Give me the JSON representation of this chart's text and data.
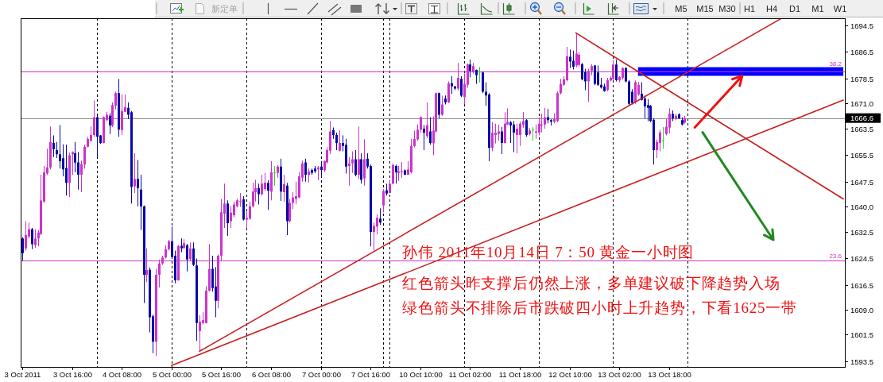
{
  "chart_data": {
    "type": "candlestick",
    "categories": [
      "3 Oct 2011",
      null,
      null,
      null,
      null,
      null,
      null,
      null,
      null,
      null,
      null,
      null,
      null,
      null,
      null,
      null,
      "3 Oct 16:00",
      null,
      null,
      null,
      null,
      null,
      null,
      null,
      null,
      null,
      null,
      null,
      null,
      null,
      null,
      null,
      "4 Oct 08:00",
      null,
      null,
      null,
      null,
      null,
      null,
      null,
      null,
      null,
      null,
      null,
      null,
      null,
      null,
      null,
      "5 Oct 00:00",
      null,
      null,
      null,
      null,
      null,
      null,
      null,
      null,
      null,
      null,
      null,
      null,
      null,
      null,
      null,
      "5 Oct 16:00",
      null,
      null,
      null,
      null,
      null,
      null,
      null,
      null,
      null,
      null,
      null,
      null,
      null,
      null,
      null,
      "6 Oct 08:00",
      null,
      null,
      null,
      null,
      null,
      null,
      null,
      null,
      null,
      null,
      null,
      null,
      null,
      null,
      null,
      "7 Oct 00:00",
      null,
      null,
      null,
      null,
      null,
      null,
      null,
      null,
      null,
      null,
      null,
      null,
      null,
      null,
      null,
      "7 Oct 16:00",
      null,
      null,
      null,
      null,
      null,
      null,
      null,
      null,
      null,
      null,
      null,
      null,
      null,
      null,
      null,
      "10 Oct 10:00",
      null,
      null,
      null,
      null,
      null,
      null,
      null,
      null,
      null,
      null,
      null,
      null,
      null,
      null,
      null,
      "11 Oct 02:00",
      null,
      null,
      null,
      null,
      null,
      null,
      null,
      null,
      null,
      null,
      null,
      null,
      null,
      null,
      null,
      "11 Oct 18:00",
      null,
      null,
      null,
      null,
      null,
      null,
      null,
      null,
      null,
      null,
      null,
      null,
      null,
      null,
      null,
      "12 Oct 10:00",
      null,
      null,
      null,
      null,
      null,
      null,
      null,
      null,
      null,
      null,
      null,
      null,
      null,
      null,
      null,
      "13 Oct 02:00",
      null,
      null,
      null,
      null,
      null,
      null,
      null,
      null,
      null,
      null,
      null,
      null,
      null,
      null,
      null,
      "13 Oct 18:00",
      null,
      null,
      null,
      null,
      null,
      null,
      null,
      null,
      null,
      null,
      null,
      null,
      null,
      null,
      null,
      null,
      null,
      null,
      null,
      null,
      null,
      null,
      null,
      null,
      null,
      null,
      null,
      null,
      null,
      null,
      null,
      null,
      null,
      null,
      null,
      null,
      null,
      null,
      null,
      null,
      null,
      null,
      null,
      null,
      null,
      null,
      null,
      null,
      null,
      null,
      null,
      null,
      null,
      null,
      null,
      null
    ],
    "ohlc": [
      [
        1630.4,
        1630.8,
        1623.7,
        1626.0
      ],
      [
        1627.4,
        1635.6,
        1626.8,
        1631.4
      ],
      [
        1631.0,
        1635.2,
        1630.4,
        1633.2
      ],
      [
        1633.2,
        1633.6,
        1627.2,
        1628.7
      ],
      [
        1628.4,
        1633.2,
        1627.6,
        1630.4
      ],
      [
        1630.4,
        1633.0,
        1628.0,
        1632.2
      ],
      [
        1631.8,
        1649.6,
        1631.4,
        1641.8
      ],
      [
        1641.5,
        1652.2,
        1641.1,
        1650.3
      ],
      [
        1649.9,
        1657.4,
        1649.6,
        1651.8
      ],
      [
        1651.7,
        1664.1,
        1651.2,
        1659.4
      ],
      [
        1659.1,
        1661.4,
        1654.9,
        1657.2
      ],
      [
        1657.0,
        1659.4,
        1654.6,
        1655.7
      ],
      [
        1655.7,
        1664.5,
        1651.4,
        1653.6
      ],
      [
        1654.5,
        1658.7,
        1649.1,
        1651.2
      ],
      [
        1651.6,
        1658.6,
        1643.3,
        1647.1
      ],
      [
        1647.2,
        1656.2,
        1642.9,
        1655.4
      ],
      [
        1655.7,
        1656.6,
        1649.5,
        1656.4
      ],
      [
        1656.0,
        1659.4,
        1650.3,
        1653.2
      ],
      [
        1653.3,
        1656.4,
        1645.1,
        1649.6
      ],
      [
        1649.6,
        1653.8,
        1644.3,
        1652.8
      ],
      [
        1652.6,
        1658.6,
        1651.4,
        1658.0
      ],
      [
        1658.0,
        1661.0,
        1657.8,
        1660.3
      ],
      [
        1659.8,
        1664.1,
        1659.4,
        1661.5
      ],
      [
        1661.5,
        1671.9,
        1661.0,
        1666.8
      ],
      [
        1666.9,
        1667.3,
        1654.9,
        1661.0
      ],
      [
        1661.4,
        1661.5,
        1658.8,
        1659.1
      ],
      [
        1659.1,
        1667.1,
        1659.0,
        1666.9
      ],
      [
        1666.0,
        1668.5,
        1665.7,
        1667.6
      ],
      [
        1667.3,
        1668.1,
        1661.8,
        1664.4
      ],
      [
        1664.4,
        1671.3,
        1663.9,
        1670.5
      ],
      [
        1670.3,
        1674.5,
        1669.2,
        1674.1
      ],
      [
        1674.1,
        1678.4,
        1661.0,
        1663.1
      ],
      [
        1663.0,
        1673.7,
        1661.5,
        1668.7
      ],
      [
        1668.5,
        1673.7,
        1668.4,
        1669.9
      ],
      [
        1669.7,
        1671.3,
        1666.3,
        1667.6
      ],
      [
        1668.4,
        1668.7,
        1640.9,
        1645.9
      ],
      [
        1646.1,
        1656.0,
        1644.1,
        1648.3
      ],
      [
        1648.3,
        1654.0,
        1640.1,
        1645.6
      ],
      [
        1645.1,
        1649.6,
        1633.0,
        1640.0
      ],
      [
        1640.1,
        1640.3,
        1611.0,
        1619.5
      ],
      [
        1619.5,
        1627.4,
        1617.3,
        1620.9
      ],
      [
        1621.0,
        1621.7,
        1602.2,
        1606.7
      ],
      [
        1607.0,
        1607.5,
        1595.9,
        1599.4
      ],
      [
        1599.4,
        1621.3,
        1595.1,
        1619.5
      ],
      [
        1619.5,
        1624.1,
        1615.7,
        1622.9
      ],
      [
        1622.9,
        1625.2,
        1622.5,
        1624.7
      ],
      [
        1624.7,
        1628.4,
        1624.4,
        1627.2
      ],
      [
        1627.2,
        1630.0,
        1626.8,
        1629.6
      ],
      [
        1629.6,
        1634.0,
        1624.4,
        1624.8
      ],
      [
        1625.2,
        1626.8,
        1616.9,
        1617.8
      ],
      [
        1617.8,
        1628.4,
        1617.7,
        1628.2
      ],
      [
        1628.2,
        1630.4,
        1626.3,
        1627.4
      ],
      [
        1627.6,
        1630.2,
        1627.2,
        1629.0
      ],
      [
        1628.4,
        1628.8,
        1620.5,
        1624.1
      ],
      [
        1624.2,
        1629.2,
        1623.7,
        1627.4
      ],
      [
        1627.4,
        1629.2,
        1622.1,
        1622.5
      ],
      [
        1622.3,
        1624.4,
        1599.6,
        1605.0
      ],
      [
        1602.6,
        1607.4,
        1596.7,
        1605.4
      ],
      [
        1605.0,
        1608.2,
        1604.6,
        1605.8
      ],
      [
        1605.0,
        1616.1,
        1604.8,
        1614.7
      ],
      [
        1614.7,
        1628.7,
        1614.5,
        1621.3
      ],
      [
        1621.3,
        1625.2,
        1614.4,
        1615.5
      ],
      [
        1616.0,
        1621.8,
        1606.7,
        1611.7
      ],
      [
        1611.7,
        1625.6,
        1609.4,
        1625.2
      ],
      [
        1625.2,
        1642.3,
        1623.7,
        1638.3
      ],
      [
        1637.9,
        1646.9,
        1633.6,
        1640.9
      ],
      [
        1640.9,
        1641.9,
        1631.2,
        1635.0
      ],
      [
        1635.6,
        1640.1,
        1633.6,
        1638.2
      ],
      [
        1637.4,
        1641.5,
        1636.8,
        1640.6
      ],
      [
        1640.1,
        1642.3,
        1639.8,
        1641.9
      ],
      [
        1641.4,
        1644.1,
        1639.9,
        1641.7
      ],
      [
        1642.2,
        1643.1,
        1635.8,
        1636.1
      ],
      [
        1636.1,
        1638.7,
        1633.6,
        1636.6
      ],
      [
        1636.4,
        1641.5,
        1636.0,
        1640.1
      ],
      [
        1640.1,
        1647.2,
        1639.8,
        1644.5
      ],
      [
        1644.3,
        1648.0,
        1641.5,
        1645.6
      ],
      [
        1645.6,
        1646.9,
        1640.6,
        1643.7
      ],
      [
        1643.7,
        1649.6,
        1643.3,
        1646.9
      ],
      [
        1645.3,
        1650.1,
        1644.7,
        1647.2
      ],
      [
        1647.1,
        1647.9,
        1639.0,
        1644.8
      ],
      [
        1644.5,
        1653.6,
        1641.9,
        1650.3
      ],
      [
        1650.1,
        1652.2,
        1646.3,
        1650.1
      ],
      [
        1650.1,
        1652.5,
        1648.7,
        1652.0
      ],
      [
        1652.0,
        1654.4,
        1641.7,
        1644.5
      ],
      [
        1644.3,
        1649.5,
        1641.5,
        1646.7
      ],
      [
        1646.3,
        1647.1,
        1631.4,
        1635.6
      ],
      [
        1635.6,
        1642.3,
        1635.2,
        1641.1
      ],
      [
        1641.1,
        1644.3,
        1639.3,
        1642.7
      ],
      [
        1642.3,
        1647.5,
        1640.7,
        1643.1
      ],
      [
        1642.7,
        1650.3,
        1642.5,
        1649.1
      ],
      [
        1648.7,
        1653.8,
        1647.5,
        1653.0
      ],
      [
        1653.3,
        1654.4,
        1647.5,
        1649.5
      ],
      [
        1649.5,
        1651.4,
        1647.2,
        1650.6
      ],
      [
        1651.0,
        1651.4,
        1649.6,
        1650.1
      ],
      [
        1651.4,
        1652.2,
        1650.1,
        1650.6
      ],
      [
        1651.2,
        1652.2,
        1647.9,
        1651.8
      ],
      [
        1652.0,
        1653.4,
        1648.8,
        1651.0
      ],
      [
        1650.9,
        1653.8,
        1650.4,
        1653.6
      ],
      [
        1653.3,
        1657.8,
        1653.0,
        1657.0
      ],
      [
        1656.8,
        1665.7,
        1655.8,
        1662.6
      ],
      [
        1663.0,
        1663.8,
        1660.4,
        1661.5
      ],
      [
        1661.5,
        1662.2,
        1657.0,
        1659.1
      ],
      [
        1656.8,
        1662.9,
        1656.6,
        1659.1
      ],
      [
        1659.1,
        1661.4,
        1656.6,
        1658.2
      ],
      [
        1658.6,
        1660.4,
        1649.9,
        1652.0
      ],
      [
        1652.2,
        1654.9,
        1646.3,
        1653.0
      ],
      [
        1653.0,
        1656.6,
        1650.1,
        1654.2
      ],
      [
        1654.2,
        1657.0,
        1649.1,
        1649.6
      ],
      [
        1649.6,
        1664.1,
        1648.3,
        1654.2
      ],
      [
        1654.2,
        1656.0,
        1646.9,
        1648.0
      ],
      [
        1648.5,
        1660.2,
        1646.3,
        1654.2
      ],
      [
        1654.4,
        1656.0,
        1651.4,
        1652.0
      ],
      [
        1652.2,
        1652.6,
        1628.0,
        1632.4
      ],
      [
        1632.4,
        1635.2,
        1626.8,
        1634.2
      ],
      [
        1634.0,
        1637.7,
        1631.6,
        1636.6
      ],
      [
        1636.4,
        1639.5,
        1634.5,
        1635.2
      ],
      [
        1640.3,
        1645.3,
        1638.3,
        1644.7
      ],
      [
        1644.9,
        1646.9,
        1643.3,
        1643.9
      ],
      [
        1644.1,
        1648.0,
        1644.0,
        1646.9
      ],
      [
        1646.9,
        1653.0,
        1646.7,
        1652.5
      ],
      [
        1652.2,
        1652.6,
        1646.9,
        1650.3
      ],
      [
        1650.1,
        1652.2,
        1647.7,
        1650.6
      ],
      [
        1650.3,
        1653.4,
        1648.7,
        1650.6
      ],
      [
        1650.9,
        1651.2,
        1649.5,
        1649.6
      ],
      [
        1649.6,
        1653.6,
        1649.5,
        1651.2
      ],
      [
        1650.3,
        1660.4,
        1649.9,
        1658.2
      ],
      [
        1658.2,
        1662.8,
        1657.8,
        1660.4
      ],
      [
        1660.2,
        1664.7,
        1659.8,
        1663.1
      ],
      [
        1663.1,
        1667.1,
        1662.2,
        1666.9
      ],
      [
        1663.4,
        1664.5,
        1657.0,
        1662.2
      ],
      [
        1661.2,
        1671.3,
        1660.6,
        1664.5
      ],
      [
        1662.6,
        1666.8,
        1658.6,
        1659.1
      ],
      [
        1659.0,
        1667.1,
        1655.4,
        1662.8
      ],
      [
        1662.6,
        1674.3,
        1662.2,
        1674.1
      ],
      [
        1674.1,
        1674.3,
        1666.5,
        1667.6
      ],
      [
        1667.6,
        1673.3,
        1667.3,
        1670.7
      ],
      [
        1672.5,
        1673.4,
        1670.7,
        1671.3
      ],
      [
        1671.3,
        1677.6,
        1671.1,
        1677.1
      ],
      [
        1677.1,
        1679.2,
        1673.9,
        1676.1
      ],
      [
        1676.1,
        1676.3,
        1675.0,
        1675.5
      ],
      [
        1675.5,
        1683.2,
        1674.9,
        1678.7
      ],
      [
        1678.4,
        1679.2,
        1672.9,
        1673.3
      ],
      [
        1672.9,
        1680.0,
        1670.7,
        1676.9
      ],
      [
        1676.6,
        1683.0,
        1675.7,
        1682.7
      ],
      [
        1682.7,
        1684.2,
        1678.8,
        1680.8
      ],
      [
        1680.6,
        1683.2,
        1680.0,
        1682.2
      ],
      [
        1681.1,
        1681.2,
        1676.9,
        1679.5
      ],
      [
        1680.4,
        1681.9,
        1677.3,
        1680.4
      ],
      [
        1680.3,
        1680.6,
        1674.1,
        1674.5
      ],
      [
        1674.5,
        1677.3,
        1670.3,
        1673.4
      ],
      [
        1673.7,
        1674.1,
        1653.6,
        1657.6
      ],
      [
        1657.6,
        1665.4,
        1656.6,
        1662.2
      ],
      [
        1661.5,
        1664.9,
        1659.0,
        1662.2
      ],
      [
        1661.8,
        1664.7,
        1659.8,
        1662.6
      ],
      [
        1662.6,
        1663.9,
        1655.8,
        1659.1
      ],
      [
        1659.1,
        1668.4,
        1659.0,
        1664.9
      ],
      [
        1664.7,
        1669.5,
        1664.5,
        1665.5
      ],
      [
        1665.4,
        1665.7,
        1659.1,
        1664.4
      ],
      [
        1664.7,
        1665.7,
        1656.4,
        1662.2
      ],
      [
        1661.5,
        1664.9,
        1656.0,
        1663.4
      ],
      [
        1661.5,
        1665.5,
        1658.2,
        1664.9
      ],
      [
        1664.5,
        1668.4,
        1663.7,
        1665.7
      ],
      [
        1666.0,
        1666.3,
        1661.0,
        1661.5
      ],
      [
        1661.8,
        1663.6,
        1661.4,
        1662.8
      ],
      [
        1663.0,
        1663.9,
        1659.8,
        1663.0
      ],
      [
        1662.2,
        1664.7,
        1660.4,
        1662.6
      ],
      [
        1662.2,
        1666.8,
        1661.4,
        1664.9
      ],
      [
        1664.4,
        1667.9,
        1662.3,
        1664.7
      ],
      [
        1664.7,
        1669.7,
        1663.4,
        1666.8
      ],
      [
        1666.9,
        1669.3,
        1665.0,
        1666.0
      ],
      [
        1666.0,
        1666.3,
        1664.4,
        1665.5
      ],
      [
        1665.5,
        1668.1,
        1665.0,
        1666.3
      ],
      [
        1665.7,
        1674.5,
        1665.4,
        1674.1
      ],
      [
        1674.1,
        1678.4,
        1673.7,
        1676.9
      ],
      [
        1676.6,
        1679.2,
        1676.3,
        1678.2
      ],
      [
        1678.0,
        1688.0,
        1677.6,
        1685.2
      ],
      [
        1685.0,
        1687.2,
        1681.6,
        1683.6
      ],
      [
        1683.8,
        1686.9,
        1681.2,
        1682.0
      ],
      [
        1682.4,
        1692.2,
        1681.9,
        1686.0
      ],
      [
        1682.6,
        1686.4,
        1682.0,
        1685.6
      ],
      [
        1682.8,
        1683.2,
        1677.9,
        1678.2
      ],
      [
        1680.4,
        1681.4,
        1675.0,
        1677.6
      ],
      [
        1677.6,
        1681.4,
        1671.5,
        1680.8
      ],
      [
        1680.8,
        1682.8,
        1679.5,
        1682.2
      ],
      [
        1682.4,
        1682.6,
        1676.5,
        1676.9
      ],
      [
        1680.3,
        1682.4,
        1676.3,
        1676.6
      ],
      [
        1676.6,
        1678.7,
        1675.5,
        1675.8
      ],
      [
        1676.1,
        1676.9,
        1674.5,
        1674.7
      ],
      [
        1675.0,
        1678.7,
        1674.7,
        1678.0
      ],
      [
        1677.9,
        1679.2,
        1677.6,
        1678.7
      ],
      [
        1678.4,
        1684.0,
        1678.0,
        1682.7
      ],
      [
        1682.7,
        1684.2,
        1677.6,
        1678.0
      ],
      [
        1677.9,
        1679.2,
        1677.4,
        1679.0
      ],
      [
        1678.7,
        1681.9,
        1678.2,
        1681.6
      ],
      [
        1681.6,
        1681.9,
        1677.3,
        1677.6
      ],
      [
        1677.6,
        1678.0,
        1670.1,
        1670.9
      ],
      [
        1674.5,
        1675.3,
        1670.7,
        1671.1
      ],
      [
        1671.3,
        1677.9,
        1670.9,
        1677.4
      ],
      [
        1673.7,
        1677.4,
        1673.3,
        1676.6
      ],
      [
        1673.9,
        1677.4,
        1671.9,
        1672.1
      ],
      [
        1672.5,
        1673.3,
        1666.5,
        1670.1
      ],
      [
        1670.5,
        1672.3,
        1665.7,
        1669.7
      ],
      [
        1670.3,
        1670.5,
        1665.4,
        1665.7
      ],
      [
        1666.1,
        1666.5,
        1652.6,
        1657.0
      ],
      [
        1657.0,
        1660.2,
        1654.6,
        1659.4
      ],
      [
        1659.1,
        1663.1,
        1656.6,
        1662.3
      ],
      [
        1659.8,
        1663.9,
        1657.4,
        1659.8
      ],
      [
        1661.8,
        1666.5,
        1661.4,
        1664.0
      ],
      [
        1663.7,
        1669.5,
        1662.0,
        1667.9
      ],
      [
        1667.9,
        1668.9,
        1665.7,
        1666.5
      ],
      [
        1666.5,
        1667.9,
        1666.0,
        1667.3
      ],
      [
        1667.7,
        1668.1,
        1666.3,
        1666.5
      ],
      [
        1666.0,
        1666.8,
        1664.4,
        1664.7
      ],
      [
        1665.2,
        1667.3,
        1664.9,
        1666.6
      ],
      null,
      null,
      null,
      null,
      null,
      null,
      null,
      null,
      null,
      null,
      null,
      null,
      null,
      null,
      null,
      null,
      null,
      null,
      null,
      null,
      null,
      null,
      null,
      null,
      null,
      null,
      null,
      null,
      null,
      null,
      null,
      null,
      null,
      null,
      null,
      null,
      null,
      null,
      null,
      null,
      null,
      null,
      null,
      null,
      null,
      null,
      null,
      null,
      null,
      null,
      null
    ],
    "colors": [
      "#0a0aa8",
      "#cc33cc",
      "#cc33cc",
      "#0a0aa8",
      "#cc33cc",
      "#cc33cc",
      "#cc33cc",
      "#cc33cc",
      "#cc33cc",
      "#cc33cc",
      "#0a0aa8",
      "#0a0aa8",
      "#0a0aa8",
      "#0a0aa8",
      "#0a0aa8",
      "#cc33cc",
      "#cc33cc",
      "#0a0aa8",
      "#0a0aa8",
      "#cc33cc",
      "#cc33cc",
      "#cc33cc",
      "#cc33cc",
      "#cc33cc",
      "#0a0aa8",
      "#0a0aa8",
      "#cc33cc",
      "#cc33cc",
      "#0a0aa8",
      "#cc33cc",
      "#cc33cc",
      "#0a0aa8",
      "#cc33cc",
      "#cc33cc",
      "#0a0aa8",
      "#0a0aa8",
      "#cc33cc",
      "#0a0aa8",
      "#0a0aa8",
      "#0a0aa8",
      "#cc33cc",
      "#0a0aa8",
      "#0a0aa8",
      "#cc33cc",
      "#cc33cc",
      "#cc33cc",
      "#cc33cc",
      "#cc33cc",
      "#0a0aa8",
      "#0a0aa8",
      "#cc33cc",
      "#0a0aa8",
      "#cc33cc",
      "#0a0aa8",
      "#cc33cc",
      "#0a0aa8",
      "#0a0aa8",
      "#cc33cc",
      "#cc33cc",
      "#cc33cc",
      "#cc33cc",
      "#0a0aa8",
      "#0a0aa8",
      "#cc33cc",
      "#cc33cc",
      "#cc33cc",
      "#0a0aa8",
      "#cc33cc",
      "#cc33cc",
      "#cc33cc",
      "#cc33cc",
      "#0a0aa8",
      "#cc33cc",
      "#cc33cc",
      "#cc33cc",
      "#cc33cc",
      "#0a0aa8",
      "#cc33cc",
      "#cc33cc",
      "#0a0aa8",
      "#cc33cc",
      "#33cc33",
      "#cc33cc",
      "#0a0aa8",
      "#cc33cc",
      "#0a0aa8",
      "#cc33cc",
      "#cc33cc",
      "#cc33cc",
      "#cc33cc",
      "#cc33cc",
      "#0a0aa8",
      "#cc33cc",
      "#0a0aa8",
      "#0a0aa8",
      "#cc33cc",
      "#0a0aa8",
      "#cc33cc",
      "#cc33cc",
      "#cc33cc",
      "#0a0aa8",
      "#0a0aa8",
      "#cc33cc",
      "#0a0aa8",
      "#0a0aa8",
      "#cc33cc",
      "#cc33cc",
      "#0a0aa8",
      "#cc33cc",
      "#0a0aa8",
      "#cc33cc",
      "#0a0aa8",
      "#0a0aa8",
      "#cc33cc",
      "#cc33cc",
      "#0a0aa8",
      "#cc33cc",
      "#0a0aa8",
      "#cc33cc",
      "#cc33cc",
      "#0a0aa8",
      "#cc33cc",
      "#cc33cc",
      "#0a0aa8",
      "#cc33cc",
      "#cc33cc",
      "#cc33cc",
      "#cc33cc",
      "#cc33cc",
      "#0a0aa8",
      "#cc33cc",
      "#0a0aa8",
      "#cc33cc",
      "#cc33cc",
      "#0a0aa8",
      "#cc33cc",
      "#0a0aa8",
      "#cc33cc",
      "#0a0aa8",
      "#0a0aa8",
      "#cc33cc",
      "#0a0aa8",
      "#cc33cc",
      "#cc33cc",
      "#0a0aa8",
      "#cc33cc",
      "#0a0aa8",
      "#33cc33",
      "#0a0aa8",
      "#0a0aa8",
      "#0a0aa8",
      "#cc33cc",
      "#cc33cc",
      "#cc33cc",
      "#0a0aa8",
      "#cc33cc",
      "#cc33cc",
      "#0a0aa8",
      "#0a0aa8",
      "#cc33cc",
      "#cc33cc",
      "#cc33cc",
      "#0a0aa8",
      "#cc33cc",
      "#33cc33",
      "#cc33cc",
      "#cc33cc",
      "#cc33cc",
      "#cc33cc",
      "#0a0aa8",
      "#0a0aa8",
      "#cc33cc",
      "#cc33cc",
      "#cc33cc",
      "#cc33cc",
      "#cc33cc",
      "#0a0aa8",
      "#0a0aa8",
      "#cc33cc",
      "#cc33cc",
      "#0a0aa8",
      "#0a0aa8",
      "#cc33cc",
      "#cc33cc",
      "#0a0aa8",
      "#0a0aa8",
      "#0a0aa8",
      "#0a0aa8",
      "#cc33cc",
      "#cc33cc",
      "#cc33cc",
      "#0a0aa8",
      "#cc33cc",
      "#cc33cc",
      "#0a0aa8",
      "#0a0aa8",
      "#0a0aa8",
      "#cc33cc",
      "#cc33cc",
      "#0a0aa8",
      "#0a0aa8",
      "#0a0aa8",
      "#0a0aa8",
      "#0a0aa8",
      "#cc33cc",
      "#cc33cc",
      "#33cc33",
      "#cc33cc",
      "#cc33cc",
      "#0a0aa8",
      "#cc33cc",
      "#0a0aa8",
      "#0a0aa8",
      "#cc33cc",
      null,
      null,
      null,
      null,
      null,
      null,
      null,
      null,
      null,
      null,
      null,
      null,
      null,
      null,
      null,
      null,
      null,
      null,
      null,
      null,
      null,
      null,
      null,
      null,
      null,
      null,
      null,
      null,
      null,
      null,
      null,
      null,
      null,
      null,
      null,
      null,
      null,
      null,
      null,
      null,
      null,
      null,
      null,
      null,
      null,
      null,
      null,
      null,
      null,
      null,
      null
    ],
    "ylim": [
      1591.8,
      1696.6
    ],
    "yticks": [
      1593.5,
      1601.5,
      {
        "value": 1609,
        "label": "1609.0"
      },
      1616.5,
      1624.5,
      1632.5,
      {
        "value": 1640,
        "label": "1640.0"
      },
      1647.5,
      1655.5,
      1663.5,
      {
        "value": 1671,
        "label": "1671.0"
      },
      1678.5,
      1686.5,
      1694.5
    ],
    "series": [
      {
        "type": "line",
        "color": "#c81e1e",
        "values": [
          null,
          null,
          null,
          null,
          null,
          null,
          null,
          null,
          null,
          null,
          null,
          null,
          null,
          null,
          null,
          null,
          null,
          null,
          null,
          null,
          null,
          null,
          null,
          null,
          null,
          null,
          null,
          null,
          null,
          null,
          null,
          null,
          null,
          null,
          null,
          null,
          null,
          null,
          null,
          null,
          null,
          null,
          null,
          null,
          null,
          null,
          null,
          null,
          null,
          null,
          null,
          null,
          null,
          null,
          null,
          null,
          null,
          1596.5,
          null,
          null,
          null,
          null,
          null,
          null,
          null,
          null,
          null,
          null,
          null,
          null,
          null,
          null,
          null,
          null,
          null,
          null,
          null,
          null,
          null,
          null,
          null,
          null,
          null,
          null,
          null,
          null,
          null,
          null,
          null,
          null,
          null,
          null,
          null,
          null,
          null,
          null,
          null,
          null,
          null,
          null,
          null,
          null,
          null,
          null,
          null,
          null,
          null,
          null,
          null,
          null,
          null,
          null,
          null,
          null,
          null,
          null,
          null,
          null,
          null,
          null,
          null,
          null,
          null,
          null,
          null,
          null,
          null,
          null,
          null,
          null,
          null,
          null,
          null,
          null,
          null,
          null,
          null,
          null,
          null,
          null,
          null,
          null,
          null,
          null,
          null,
          null,
          null,
          null,
          null,
          null,
          null,
          null,
          null,
          null,
          null,
          null,
          null,
          null,
          null,
          null,
          null,
          null,
          null,
          null,
          null,
          null,
          null,
          null,
          null,
          null,
          null,
          null,
          null,
          null,
          null,
          null,
          null,
          null,
          null,
          null,
          null,
          null,
          null,
          null,
          null,
          null,
          null,
          null,
          null,
          null,
          null,
          null,
          null,
          null,
          null,
          null,
          null,
          null,
          null,
          null,
          null,
          null,
          null,
          null,
          null,
          null,
          null,
          null,
          null,
          null,
          null,
          null,
          null,
          null,
          null,
          null,
          null,
          null,
          null,
          null,
          null,
          null,
          null,
          null,
          null,
          null,
          null,
          null,
          null,
          null,
          null,
          null,
          null,
          null,
          null,
          null,
          null,
          null,
          null,
          null,
          null,
          null,
          null,
          null,
          1696.5,
          null,
          null,
          null,
          null,
          null,
          null,
          null,
          null,
          null,
          null,
          null,
          null,
          null,
          null,
          null,
          null,
          null,
          null,
          null,
          null
        ]
      },
      {
        "type": "line",
        "color": "#c81e1e",
        "values": [
          null,
          null,
          null,
          null,
          null,
          null,
          null,
          null,
          null,
          null,
          null,
          null,
          null,
          null,
          null,
          null,
          null,
          null,
          null,
          null,
          null,
          null,
          null,
          null,
          null,
          null,
          null,
          null,
          null,
          null,
          null,
          null,
          null,
          null,
          null,
          null,
          null,
          null,
          null,
          null,
          null,
          null,
          null,
          null,
          null,
          null,
          null,
          null,
          1592.2,
          null,
          null,
          null,
          null,
          null,
          null,
          null,
          null,
          null,
          null,
          null,
          null,
          null,
          null,
          null,
          null,
          null,
          null,
          null,
          null,
          null,
          null,
          null,
          null,
          null,
          null,
          null,
          null,
          null,
          null,
          null,
          null,
          null,
          null,
          null,
          null,
          null,
          null,
          null,
          null,
          null,
          null,
          null,
          null,
          null,
          null,
          null,
          null,
          null,
          null,
          null,
          null,
          null,
          null,
          null,
          null,
          null,
          null,
          null,
          null,
          null,
          null,
          null,
          null,
          null,
          null,
          null,
          null,
          null,
          null,
          null,
          null,
          null,
          null,
          null,
          null,
          null,
          null,
          null,
          null,
          null,
          null,
          null,
          null,
          null,
          null,
          null,
          null,
          null,
          null,
          null,
          null,
          null,
          null,
          null,
          null,
          null,
          null,
          null,
          null,
          null,
          null,
          null,
          null,
          null,
          null,
          null,
          null,
          null,
          null,
          null,
          null,
          null,
          null,
          null,
          null,
          null,
          null,
          null,
          null,
          null,
          null,
          null,
          null,
          null,
          null,
          null,
          null,
          null,
          null,
          null,
          null,
          null,
          null,
          null,
          null,
          null,
          null,
          null,
          null,
          null,
          null,
          null,
          null,
          null,
          null,
          null,
          null,
          null,
          null,
          null,
          null,
          null,
          null,
          null,
          null,
          null,
          null,
          null,
          null,
          null,
          null,
          null,
          null,
          null,
          null,
          null,
          null,
          null,
          null,
          null,
          null,
          null,
          null,
          null,
          null,
          null,
          null,
          null,
          null,
          null,
          null,
          null,
          null,
          null,
          null,
          null,
          null,
          null,
          null,
          null,
          null,
          null,
          null,
          null,
          null,
          null,
          null,
          null,
          null,
          null,
          null,
          null,
          null,
          null,
          null,
          null,
          null,
          null,
          null,
          null,
          null,
          null,
          null,
          null,
          1672.0
        ]
      },
      {
        "type": "line",
        "color": "#c81e1e",
        "values": [
          null,
          null,
          null,
          null,
          null,
          null,
          null,
          null,
          null,
          null,
          null,
          null,
          null,
          null,
          null,
          null,
          null,
          null,
          null,
          null,
          null,
          null,
          null,
          null,
          null,
          null,
          null,
          null,
          null,
          null,
          null,
          null,
          null,
          null,
          null,
          null,
          null,
          null,
          null,
          null,
          null,
          null,
          null,
          null,
          null,
          null,
          null,
          null,
          null,
          null,
          null,
          null,
          null,
          null,
          null,
          null,
          null,
          null,
          null,
          null,
          null,
          null,
          null,
          null,
          null,
          null,
          null,
          null,
          null,
          null,
          null,
          null,
          null,
          null,
          null,
          null,
          null,
          null,
          null,
          null,
          null,
          null,
          null,
          null,
          null,
          null,
          null,
          null,
          null,
          null,
          null,
          null,
          null,
          null,
          null,
          null,
          null,
          null,
          null,
          null,
          null,
          null,
          null,
          null,
          null,
          null,
          null,
          null,
          null,
          null,
          null,
          null,
          null,
          null,
          null,
          null,
          null,
          null,
          null,
          null,
          null,
          null,
          null,
          null,
          null,
          null,
          null,
          null,
          null,
          null,
          null,
          null,
          null,
          null,
          null,
          null,
          null,
          null,
          null,
          null,
          null,
          null,
          null,
          null,
          null,
          null,
          null,
          null,
          null,
          null,
          null,
          null,
          null,
          null,
          null,
          null,
          null,
          null,
          null,
          null,
          null,
          null,
          null,
          null,
          null,
          null,
          null,
          null,
          null,
          null,
          null,
          null,
          null,
          null,
          null,
          null,
          null,
          null,
          1692.2,
          null,
          null,
          null,
          null,
          null,
          null,
          null,
          null,
          null,
          null,
          null,
          null,
          null,
          null,
          null,
          null,
          null,
          null,
          null,
          null,
          null,
          null,
          null,
          null,
          null,
          null,
          null,
          null,
          null,
          null,
          null,
          null,
          null,
          null,
          null,
          null,
          null,
          null,
          null,
          null,
          null,
          null,
          null,
          null,
          null,
          null,
          null,
          null,
          null,
          null,
          null,
          null,
          null,
          null,
          null,
          null,
          null,
          null,
          null,
          null,
          null,
          null,
          null,
          null,
          null,
          null,
          null,
          null,
          null,
          null,
          null,
          null,
          null,
          null,
          null,
          null,
          null,
          null,
          null,
          null,
          null,
          null,
          null,
          null,
          null,
          1642.3
        ]
      }
    ],
    "ref_lines": [
      {
        "axis": "y",
        "value": 1680.6,
        "color": "#cc33cc"
      },
      {
        "axis": "y",
        "value": 1623.8,
        "color": "#cc33cc"
      },
      {
        "axis": "y",
        "value": 1666.6,
        "label": "1666.6",
        "color": "#8c8c8c"
      }
    ],
    "annotations": [
      "孙伟 2011年10月14日 7：50 黄金一小时图",
      "红色箭头昨支撑后仍然上涨，多单建议破下降趋势入场",
      "绿色箭头不排除后市跌破四小时上升趋势，下看1625一带",
      "新定单",
      "M5",
      "M15",
      "M30",
      "H1",
      "H4",
      "D1",
      "M1",
      "W1",
      {
        "text": "38.2",
        "y": 1680.6
      },
      {
        "text": "23.6",
        "y": 1623.8
      }
    ]
  }
}
